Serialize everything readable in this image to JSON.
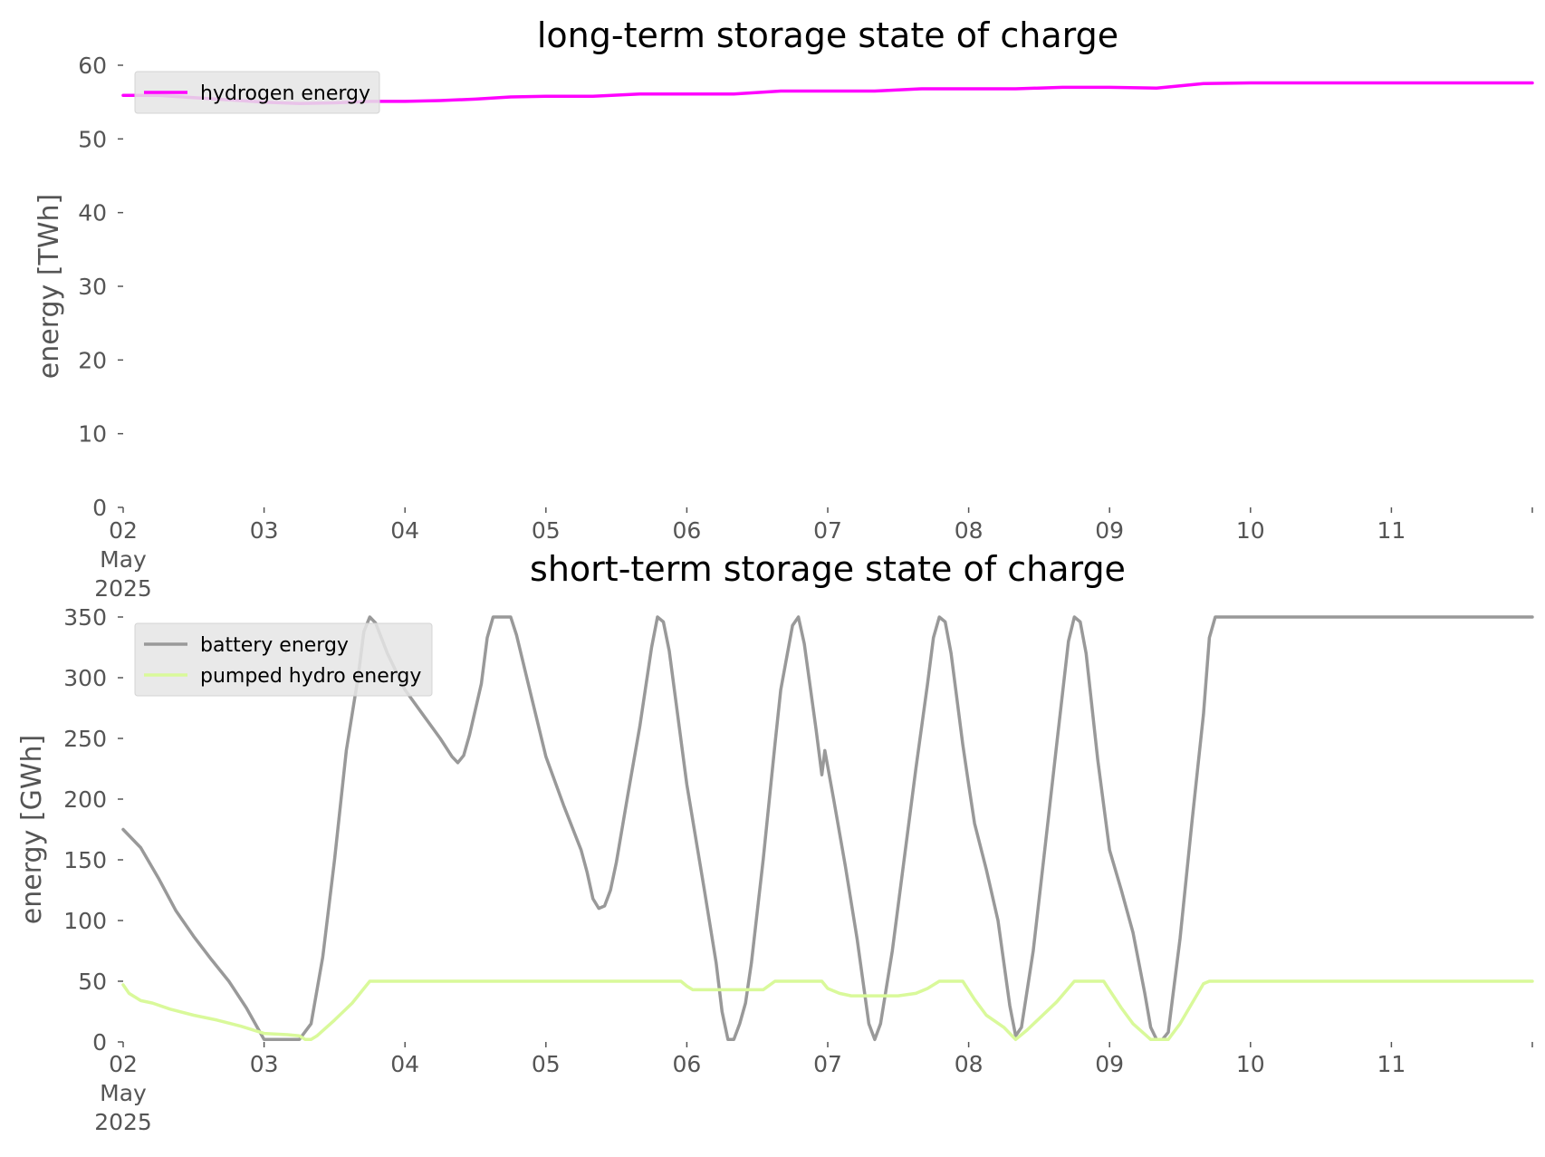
{
  "chart_data": [
    {
      "type": "line",
      "title": "long-term storage state of charge",
      "xlabel": "",
      "ylabel": "energy [TWh]",
      "ylim": [
        0,
        60
      ],
      "xlim": [
        "2025-05-02",
        "2025-05-12"
      ],
      "y_ticks": [
        "0",
        "10",
        "20",
        "30",
        "40",
        "50",
        "60"
      ],
      "x_ticks": [
        "02\nMay\n2025",
        "03",
        "04",
        "05",
        "06",
        "07",
        "08",
        "09",
        "10",
        "11"
      ],
      "grid": false,
      "legend": "top-left",
      "series": [
        {
          "name": "hydrogen energy",
          "color": "#ff00ff",
          "points": [
            [
              "2025-05-02 00:00",
              55.9
            ],
            [
              "2025-05-02 06:00",
              55.9
            ],
            [
              "2025-05-02 12:00",
              55.6
            ],
            [
              "2025-05-02 18:00",
              55.3
            ],
            [
              "2025-05-03 00:00",
              55.0
            ],
            [
              "2025-05-03 06:00",
              54.8
            ],
            [
              "2025-05-03 12:00",
              54.9
            ],
            [
              "2025-05-03 18:00",
              55.1
            ],
            [
              "2025-05-04 00:00",
              55.1
            ],
            [
              "2025-05-04 06:00",
              55.2
            ],
            [
              "2025-05-04 12:00",
              55.4
            ],
            [
              "2025-05-04 18:00",
              55.7
            ],
            [
              "2025-05-05 00:00",
              55.8
            ],
            [
              "2025-05-05 08:00",
              55.8
            ],
            [
              "2025-05-05 16:00",
              56.1
            ],
            [
              "2025-05-06 00:00",
              56.1
            ],
            [
              "2025-05-06 08:00",
              56.1
            ],
            [
              "2025-05-06 16:00",
              56.5
            ],
            [
              "2025-05-07 00:00",
              56.5
            ],
            [
              "2025-05-07 08:00",
              56.5
            ],
            [
              "2025-05-07 16:00",
              56.8
            ],
            [
              "2025-05-08 00:00",
              56.8
            ],
            [
              "2025-05-08 08:00",
              56.8
            ],
            [
              "2025-05-08 16:00",
              57.0
            ],
            [
              "2025-05-09 00:00",
              57.0
            ],
            [
              "2025-05-09 08:00",
              56.9
            ],
            [
              "2025-05-09 16:00",
              57.5
            ],
            [
              "2025-05-10 00:00",
              57.6
            ],
            [
              "2025-05-11 00:00",
              57.6
            ],
            [
              "2025-05-12 00:00",
              57.6
            ]
          ]
        }
      ]
    },
    {
      "type": "line",
      "title": "short-term storage state of charge",
      "xlabel": "",
      "ylabel": "energy [GWh]",
      "ylim": [
        0,
        350
      ],
      "xlim": [
        "2025-05-02",
        "2025-05-12"
      ],
      "y_ticks": [
        "0",
        "50",
        "100",
        "150",
        "200",
        "250",
        "300",
        "350"
      ],
      "x_ticks": [
        "02\nMay\n2025",
        "03",
        "04",
        "05",
        "06",
        "07",
        "08",
        "09",
        "10",
        "11"
      ],
      "grid": false,
      "legend": "top-left",
      "series": [
        {
          "name": "battery energy",
          "color": "#999999",
          "points": [
            [
              "2025-05-02 00:00",
              175
            ],
            [
              "2025-05-02 03:00",
              160
            ],
            [
              "2025-05-02 06:00",
              135
            ],
            [
              "2025-05-02 09:00",
              108
            ],
            [
              "2025-05-02 12:00",
              87
            ],
            [
              "2025-05-02 15:00",
              68
            ],
            [
              "2025-05-02 18:00",
              50
            ],
            [
              "2025-05-02 21:00",
              28
            ],
            [
              "2025-05-03 00:00",
              2
            ],
            [
              "2025-05-03 03:00",
              2
            ],
            [
              "2025-05-03 06:00",
              2
            ],
            [
              "2025-05-03 08:00",
              15
            ],
            [
              "2025-05-03 10:00",
              70
            ],
            [
              "2025-05-03 12:00",
              150
            ],
            [
              "2025-05-03 14:00",
              240
            ],
            [
              "2025-05-03 16:00",
              300
            ],
            [
              "2025-05-03 17:00",
              338
            ],
            [
              "2025-05-03 18:00",
              350
            ],
            [
              "2025-05-03 19:00",
              345
            ],
            [
              "2025-05-03 21:00",
              320
            ],
            [
              "2025-05-04 00:00",
              290
            ],
            [
              "2025-05-04 03:00",
              270
            ],
            [
              "2025-05-04 06:00",
              250
            ],
            [
              "2025-05-04 08:00",
              235
            ],
            [
              "2025-05-04 09:00",
              230
            ],
            [
              "2025-05-04 10:00",
              236
            ],
            [
              "2025-05-04 11:00",
              253
            ],
            [
              "2025-05-04 13:00",
              295
            ],
            [
              "2025-05-04 14:00",
              333
            ],
            [
              "2025-05-04 15:00",
              350
            ],
            [
              "2025-05-04 18:00",
              350
            ],
            [
              "2025-05-04 19:00",
              335
            ],
            [
              "2025-05-04 21:00",
              295
            ],
            [
              "2025-05-05 00:00",
              235
            ],
            [
              "2025-05-05 03:00",
              195
            ],
            [
              "2025-05-05 06:00",
              158
            ],
            [
              "2025-05-05 07:00",
              140
            ],
            [
              "2025-05-05 08:00",
              118
            ],
            [
              "2025-05-05 09:00",
              110
            ],
            [
              "2025-05-05 10:00",
              112
            ],
            [
              "2025-05-05 11:00",
              125
            ],
            [
              "2025-05-05 12:00",
              148
            ],
            [
              "2025-05-05 14:00",
              205
            ],
            [
              "2025-05-05 16:00",
              260
            ],
            [
              "2025-05-05 18:00",
              325
            ],
            [
              "2025-05-05 19:00",
              350
            ],
            [
              "2025-05-05 20:00",
              346
            ],
            [
              "2025-05-05 21:00",
              322
            ],
            [
              "2025-05-06 00:00",
              212
            ],
            [
              "2025-05-06 03:00",
              125
            ],
            [
              "2025-05-06 05:00",
              65
            ],
            [
              "2025-05-06 06:00",
              25
            ],
            [
              "2025-05-06 07:00",
              2
            ],
            [
              "2025-05-06 08:00",
              2
            ],
            [
              "2025-05-06 09:00",
              15
            ],
            [
              "2025-05-06 10:00",
              32
            ],
            [
              "2025-05-06 11:00",
              65
            ],
            [
              "2025-05-06 13:00",
              150
            ],
            [
              "2025-05-06 15:00",
              245
            ],
            [
              "2025-05-06 16:00",
              290
            ],
            [
              "2025-05-06 18:00",
              343
            ],
            [
              "2025-05-06 19:00",
              350
            ],
            [
              "2025-05-06 20:00",
              328
            ],
            [
              "2025-05-06 22:00",
              258
            ],
            [
              "2025-05-06 23:00",
              220
            ],
            [
              "2025-05-06 23:30",
              240
            ],
            [
              "2025-05-07 01:00",
              200
            ],
            [
              "2025-05-07 03:00",
              145
            ],
            [
              "2025-05-07 05:00",
              85
            ],
            [
              "2025-05-07 07:00",
              15
            ],
            [
              "2025-05-07 08:00",
              2
            ],
            [
              "2025-05-07 09:00",
              15
            ],
            [
              "2025-05-07 11:00",
              75
            ],
            [
              "2025-05-07 13:00",
              150
            ],
            [
              "2025-05-07 15:00",
              225
            ],
            [
              "2025-05-07 17:00",
              295
            ],
            [
              "2025-05-07 18:00",
              333
            ],
            [
              "2025-05-07 19:00",
              350
            ],
            [
              "2025-05-07 20:00",
              346
            ],
            [
              "2025-05-07 21:00",
              320
            ],
            [
              "2025-05-07 23:00",
              245
            ],
            [
              "2025-05-08 00:00",
              212
            ],
            [
              "2025-05-08 01:00",
              180
            ],
            [
              "2025-05-08 03:00",
              142
            ],
            [
              "2025-05-08 05:00",
              100
            ],
            [
              "2025-05-08 06:00",
              65
            ],
            [
              "2025-05-08 07:00",
              30
            ],
            [
              "2025-05-08 08:00",
              5
            ],
            [
              "2025-05-08 09:00",
              12
            ],
            [
              "2025-05-08 11:00",
              75
            ],
            [
              "2025-05-08 13:00",
              160
            ],
            [
              "2025-05-08 15:00",
              245
            ],
            [
              "2025-05-08 17:00",
              330
            ],
            [
              "2025-05-08 18:00",
              350
            ],
            [
              "2025-05-08 19:00",
              346
            ],
            [
              "2025-05-08 20:00",
              320
            ],
            [
              "2025-05-08 22:00",
              232
            ],
            [
              "2025-05-09 00:00",
              158
            ],
            [
              "2025-05-09 02:00",
              125
            ],
            [
              "2025-05-09 04:00",
              90
            ],
            [
              "2025-05-09 06:00",
              40
            ],
            [
              "2025-05-09 07:00",
              12
            ],
            [
              "2025-05-09 08:00",
              2
            ],
            [
              "2025-05-09 09:00",
              2
            ],
            [
              "2025-05-09 10:00",
              8
            ],
            [
              "2025-05-09 12:00",
              85
            ],
            [
              "2025-05-09 14:00",
              180
            ],
            [
              "2025-05-09 16:00",
              270
            ],
            [
              "2025-05-09 17:00",
              333
            ],
            [
              "2025-05-09 18:00",
              350
            ],
            [
              "2025-05-10 00:00",
              350
            ],
            [
              "2025-05-11 00:00",
              350
            ],
            [
              "2025-05-12 00:00",
              350
            ]
          ]
        },
        {
          "name": "pumped hydro energy",
          "color": "#d9f99a",
          "points": [
            [
              "2025-05-02 00:00",
              47
            ],
            [
              "2025-05-02 01:00",
              40
            ],
            [
              "2025-05-02 03:00",
              34
            ],
            [
              "2025-05-02 05:00",
              32
            ],
            [
              "2025-05-02 08:00",
              27
            ],
            [
              "2025-05-02 12:00",
              22
            ],
            [
              "2025-05-02 16:00",
              18
            ],
            [
              "2025-05-02 20:00",
              13
            ],
            [
              "2025-05-03 00:00",
              7
            ],
            [
              "2025-05-03 04:00",
              6
            ],
            [
              "2025-05-03 06:00",
              5
            ],
            [
              "2025-05-03 07:00",
              2
            ],
            [
              "2025-05-03 08:00",
              2
            ],
            [
              "2025-05-03 09:00",
              5
            ],
            [
              "2025-05-03 12:00",
              18
            ],
            [
              "2025-05-03 15:00",
              32
            ],
            [
              "2025-05-03 18:00",
              50
            ],
            [
              "2025-05-04 00:00",
              50
            ],
            [
              "2025-05-05 00:00",
              50
            ],
            [
              "2025-05-05 23:00",
              50
            ],
            [
              "2025-05-06 00:00",
              46
            ],
            [
              "2025-05-06 01:00",
              43
            ],
            [
              "2025-05-06 12:00",
              43
            ],
            [
              "2025-05-06 13:00",
              43
            ],
            [
              "2025-05-06 15:00",
              50
            ],
            [
              "2025-05-06 23:00",
              50
            ],
            [
              "2025-05-07 00:00",
              44
            ],
            [
              "2025-05-07 02:00",
              40
            ],
            [
              "2025-05-07 04:00",
              38
            ],
            [
              "2025-05-07 12:00",
              38
            ],
            [
              "2025-05-07 15:00",
              40
            ],
            [
              "2025-05-07 17:00",
              44
            ],
            [
              "2025-05-07 19:00",
              50
            ],
            [
              "2025-05-07 23:00",
              50
            ],
            [
              "2025-05-08 01:00",
              35
            ],
            [
              "2025-05-08 03:00",
              22
            ],
            [
              "2025-05-08 06:00",
              12
            ],
            [
              "2025-05-08 08:00",
              2
            ],
            [
              "2025-05-08 10:00",
              10
            ],
            [
              "2025-05-08 15:00",
              33
            ],
            [
              "2025-05-08 18:00",
              50
            ],
            [
              "2025-05-08 23:00",
              50
            ],
            [
              "2025-05-09 02:00",
              28
            ],
            [
              "2025-05-09 04:00",
              15
            ],
            [
              "2025-05-09 07:00",
              2
            ],
            [
              "2025-05-09 10:00",
              2
            ],
            [
              "2025-05-09 12:00",
              15
            ],
            [
              "2025-05-09 16:00",
              48
            ],
            [
              "2025-05-09 17:00",
              50
            ],
            [
              "2025-05-10 00:00",
              50
            ],
            [
              "2025-05-11 00:00",
              50
            ],
            [
              "2025-05-12 00:00",
              50
            ]
          ]
        }
      ]
    }
  ]
}
